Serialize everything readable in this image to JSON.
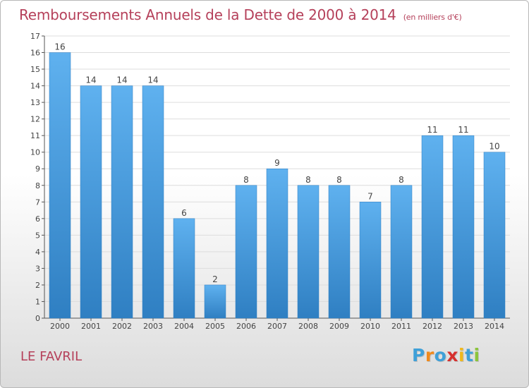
{
  "chart_data": {
    "type": "bar",
    "title": "Remboursements Annuels de la Dette de 2000 à 2014",
    "subtitle": "(en milliers d'€)",
    "categories": [
      "2000",
      "2001",
      "2002",
      "2003",
      "2004",
      "2005",
      "2006",
      "2007",
      "2008",
      "2009",
      "2010",
      "2011",
      "2012",
      "2013",
      "2014"
    ],
    "values": [
      16,
      14,
      14,
      14,
      6,
      2,
      8,
      9,
      8,
      8,
      7,
      8,
      11,
      11,
      10
    ],
    "ylim": [
      0,
      17
    ],
    "yticks": [
      0,
      1,
      2,
      3,
      4,
      5,
      6,
      7,
      8,
      9,
      10,
      11,
      12,
      13,
      14,
      15,
      16,
      17
    ],
    "grid": true,
    "bar_color": "#4a9de0",
    "legend": "none"
  },
  "location": "LE FAVRIL",
  "brand": {
    "letters": [
      "P",
      "r",
      "o",
      "x",
      "i",
      "t",
      "i"
    ],
    "colors": [
      "#3fa0d8",
      "#f08a1c",
      "#3fa0d8",
      "#d6302e",
      "#f0b81c",
      "#3fa0d8",
      "#8cc43c"
    ]
  },
  "colors": {
    "title": "#b5405a",
    "grid": "#dddddd",
    "axis": "#555555"
  }
}
